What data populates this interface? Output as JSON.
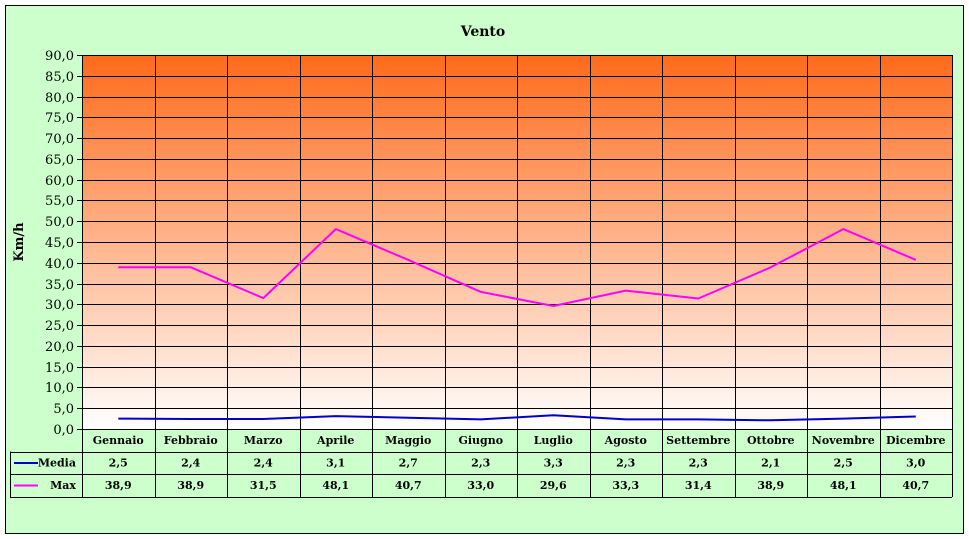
{
  "chart_data": {
    "type": "line",
    "title": "Vento",
    "ylabel": "Km/h",
    "xlabel": "",
    "ylim": [
      0,
      90
    ],
    "ytick_step": 5,
    "grid": true,
    "legend": "data-table-left",
    "categories": [
      "Gennaio",
      "Febbraio",
      "Marzo",
      "Aprile",
      "Maggio",
      "Giugno",
      "Luglio",
      "Agosto",
      "Settembre",
      "Ottobre",
      "Novembre",
      "Dicembre"
    ],
    "series": [
      {
        "name": "Media",
        "color": "#0000cc",
        "values": [
          2.5,
          2.4,
          2.4,
          3.1,
          2.7,
          2.3,
          3.3,
          2.3,
          2.3,
          2.1,
          2.5,
          3.0
        ],
        "labels": [
          "2,5",
          "2,4",
          "2,4",
          "3,1",
          "2,7",
          "2,3",
          "3,3",
          "2,3",
          "2,3",
          "2,1",
          "2,5",
          "3,0"
        ]
      },
      {
        "name": "Max",
        "color": "#ff00ff",
        "values": [
          38.9,
          38.9,
          31.5,
          48.1,
          40.7,
          33.0,
          29.6,
          33.3,
          31.4,
          38.9,
          48.1,
          40.7
        ],
        "labels": [
          "38,9",
          "38,9",
          "31,5",
          "48,1",
          "40,7",
          "33,0",
          "29,6",
          "33,3",
          "31,4",
          "38,9",
          "48,1",
          "40,7"
        ]
      }
    ]
  },
  "colors": {
    "background": "#ccffcc",
    "plot_top": "#ff6a1a",
    "plot_bottom": "#ffffff",
    "grid": "#000000"
  }
}
